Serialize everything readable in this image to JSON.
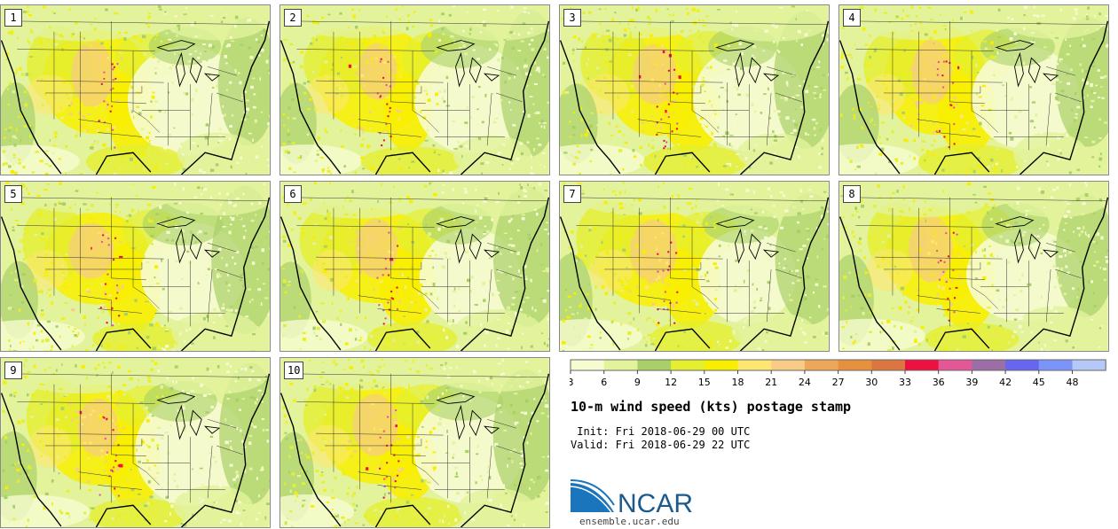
{
  "chart_data": {
    "type": "heatmap",
    "title": "10-m wind speed (kts) postage stamp",
    "init_label": " Init: Fri 2018-06-29 00 UTC",
    "valid_label": "Valid: Fri 2018-06-29 22 UTC",
    "members": [
      "1",
      "2",
      "3",
      "4",
      "5",
      "6",
      "7",
      "8",
      "9",
      "10"
    ],
    "colorbar": {
      "ticks": [
        "3",
        "6",
        "9",
        "12",
        "15",
        "18",
        "21",
        "24",
        "27",
        "30",
        "33",
        "36",
        "39",
        "42",
        "45",
        "48"
      ],
      "boundaries": [
        3,
        6,
        9,
        12,
        15,
        18,
        21,
        24,
        27,
        30,
        33,
        36,
        39,
        42,
        45,
        48,
        51
      ],
      "colors": [
        "#f6fbd0",
        "#e2f39c",
        "#a9d068",
        "#e5ef30",
        "#f8ee00",
        "#fde772",
        "#f8cc86",
        "#eda759",
        "#e7913f",
        "#da7640",
        "#ee103f",
        "#e45797",
        "#9c6ea6",
        "#6667ee",
        "#7c94f8",
        "#b4c9f8"
      ]
    }
  },
  "footer": {
    "logo_text": "NCAR",
    "site": "ensemble.ucar.edu"
  }
}
